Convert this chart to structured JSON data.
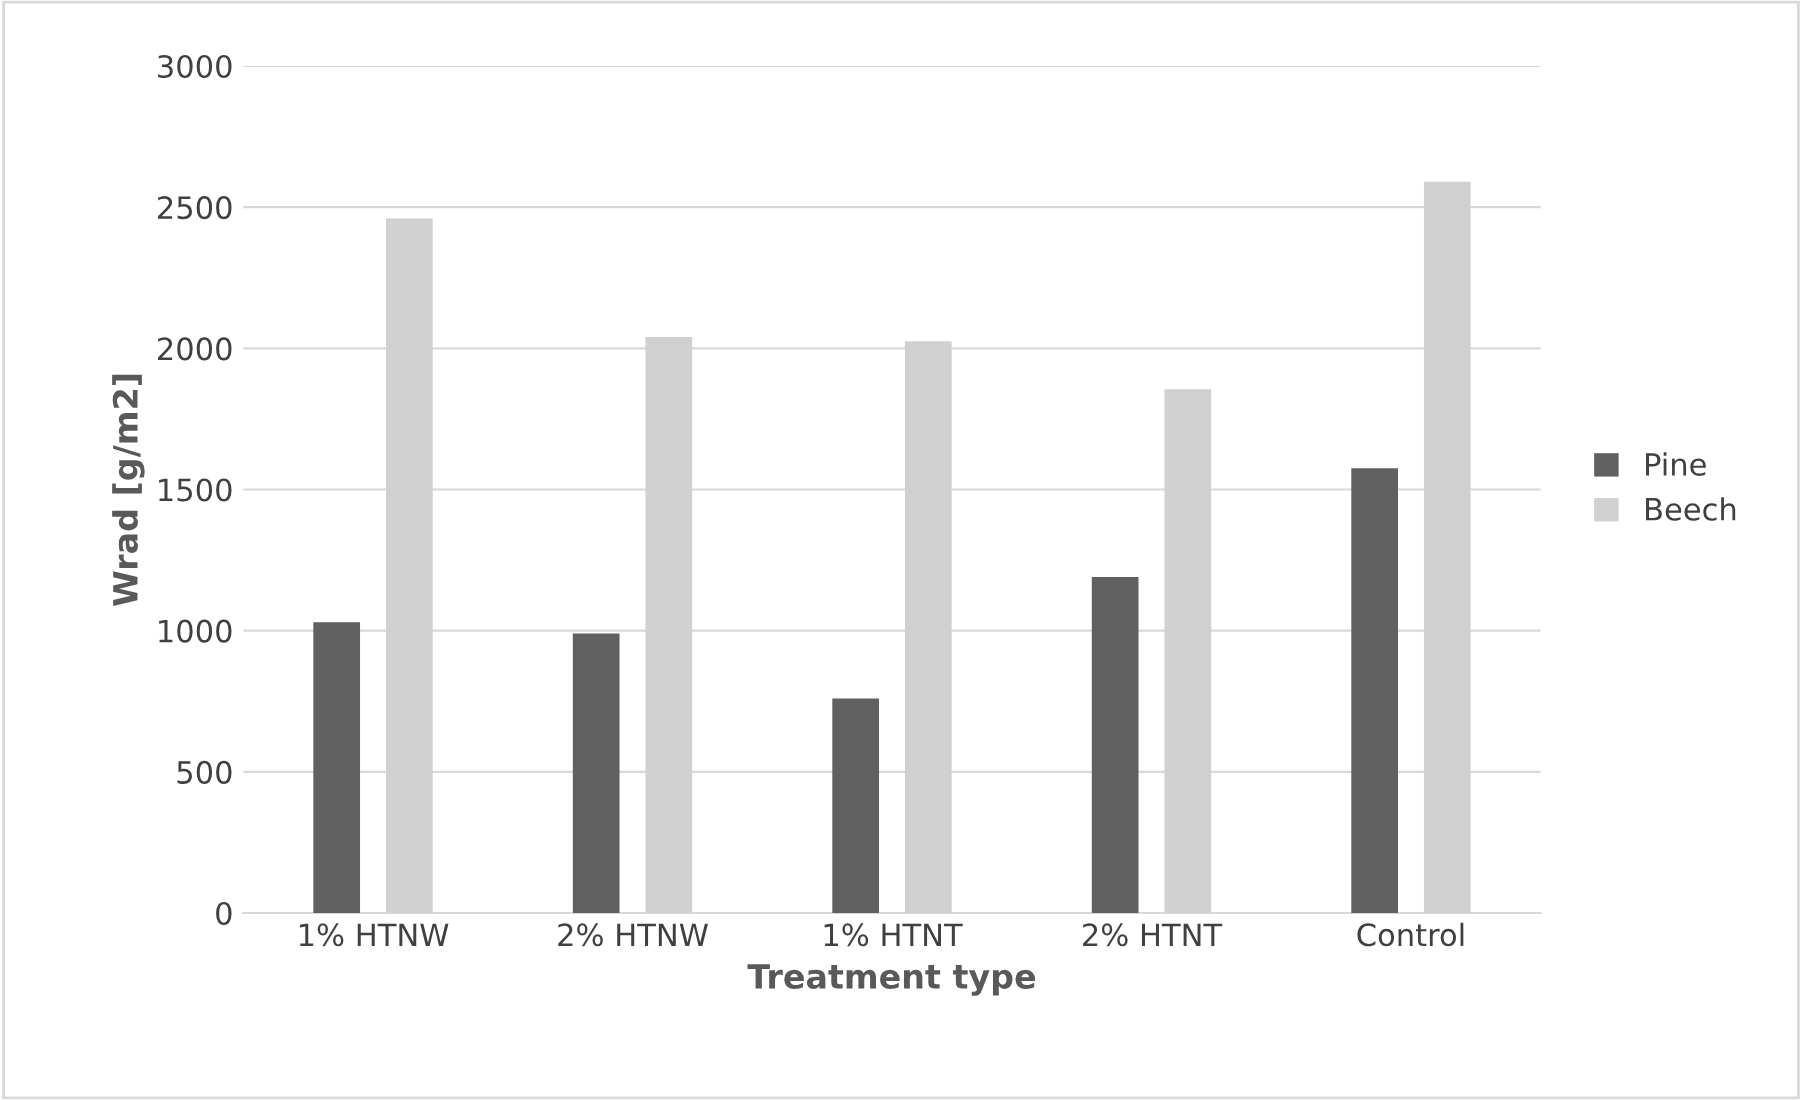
{
  "chart_data": {
    "type": "bar",
    "xlabel": "Treatment type",
    "ylabel": "Wrad [g/m2]",
    "categories": [
      "1% HTNW",
      "2% HTNW",
      "1% HTNT",
      "2% HTNT",
      "Control"
    ],
    "series": [
      {
        "name": "Pine",
        "color": "#606060",
        "values": [
          1030,
          990,
          760,
          1190,
          1575
        ]
      },
      {
        "name": "Beech",
        "color": "#d0d0d0",
        "values": [
          2460,
          2040,
          2025,
          1855,
          2590
        ]
      }
    ],
    "ylim": [
      0,
      3000
    ],
    "yticks": [
      0,
      500,
      1000,
      1500,
      2000,
      2500,
      3000
    ],
    "grid": "y",
    "legend": "right"
  }
}
